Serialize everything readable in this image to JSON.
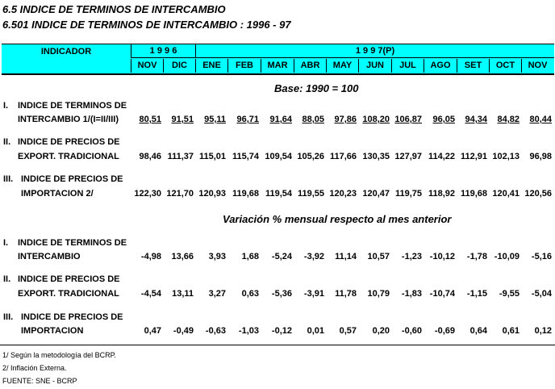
{
  "title1": "6.5  INDICE DE TERMINOS DE INTERCAMBIO",
  "title2": "6.501  INDICE DE TERMINOS DE INTERCAMBIO : 1996 - 97",
  "header": {
    "indicador": "INDICADOR",
    "year1": "1 9 9 6",
    "year2": "1 9 9 7(P)",
    "months": [
      "NOV",
      "DIC",
      "ENE",
      "FEB",
      "MAR",
      "ABR",
      "MAY",
      "JUN",
      "JUL",
      "AGO",
      "SET",
      "OCT",
      "NOV"
    ]
  },
  "section1": {
    "subtitle": "Base: 1990 = 100",
    "rows": [
      {
        "num": "I.",
        "line1": "INDICE DE TERMINOS DE",
        "line2": "INTERCAMBIO 1/(I=II/III)",
        "values": [
          "80,51",
          "91,51",
          "95,11",
          "96,71",
          "91,64",
          "88,05",
          "97,86",
          "108,20",
          "106,87",
          "96,05",
          "94,34",
          "84,82",
          "80,44"
        ]
      },
      {
        "num": "II.",
        "line1": "INDICE DE PRECIOS DE",
        "line2": "EXPORT. TRADICIONAL",
        "values": [
          "98,46",
          "111,37",
          "115,01",
          "115,74",
          "109,54",
          "105,26",
          "117,66",
          "130,35",
          "127,97",
          "114,22",
          "112,91",
          "102,13",
          "96,98"
        ]
      },
      {
        "num": "III.",
        "line1": "INDICE DE PRECIOS DE",
        "line2": "IMPORTACION  2/",
        "values": [
          "122,30",
          "121,70",
          "120,93",
          "119,68",
          "119,54",
          "119,55",
          "120,23",
          "120,47",
          "119,75",
          "118,92",
          "119,68",
          "120,41",
          "120,56"
        ]
      }
    ]
  },
  "section2": {
    "subtitle": "Variación % mensual respecto al mes anterior",
    "rows": [
      {
        "num": "I.",
        "line1": "INDICE DE TERMINOS DE",
        "line2": "INTERCAMBIO",
        "values": [
          "-4,98",
          "13,66",
          "3,93",
          "1,68",
          "-5,24",
          "-3,92",
          "11,14",
          "10,57",
          "-1,23",
          "-10,12",
          "-1,78",
          "-10,09",
          "-5,16"
        ]
      },
      {
        "num": "II.",
        "line1": "INDICE DE PRECIOS DE",
        "line2": "EXPORT. TRADICIONAL",
        "values": [
          "-4,54",
          "13,11",
          "3,27",
          "0,63",
          "-5,36",
          "-3,91",
          "11,78",
          "10,79",
          "-1,83",
          "-10,74",
          "-1,15",
          "-9,55",
          "-5,04"
        ]
      },
      {
        "num": "III.",
        "line1": "INDICE DE PRECIOS DE",
        "line2": "IMPORTACION",
        "values": [
          "0,47",
          "-0,49",
          "-0,63",
          "-1,03",
          "-0,12",
          "0,01",
          "0,57",
          "0,20",
          "-0,60",
          "-0,69",
          "0,64",
          "0,61",
          "0,12"
        ]
      }
    ]
  },
  "footnotes": [
    "1/ Según la metodología del BCRP.",
    "2/ Inflación Externa.",
    "FUENTE: SNE - BCRP"
  ]
}
